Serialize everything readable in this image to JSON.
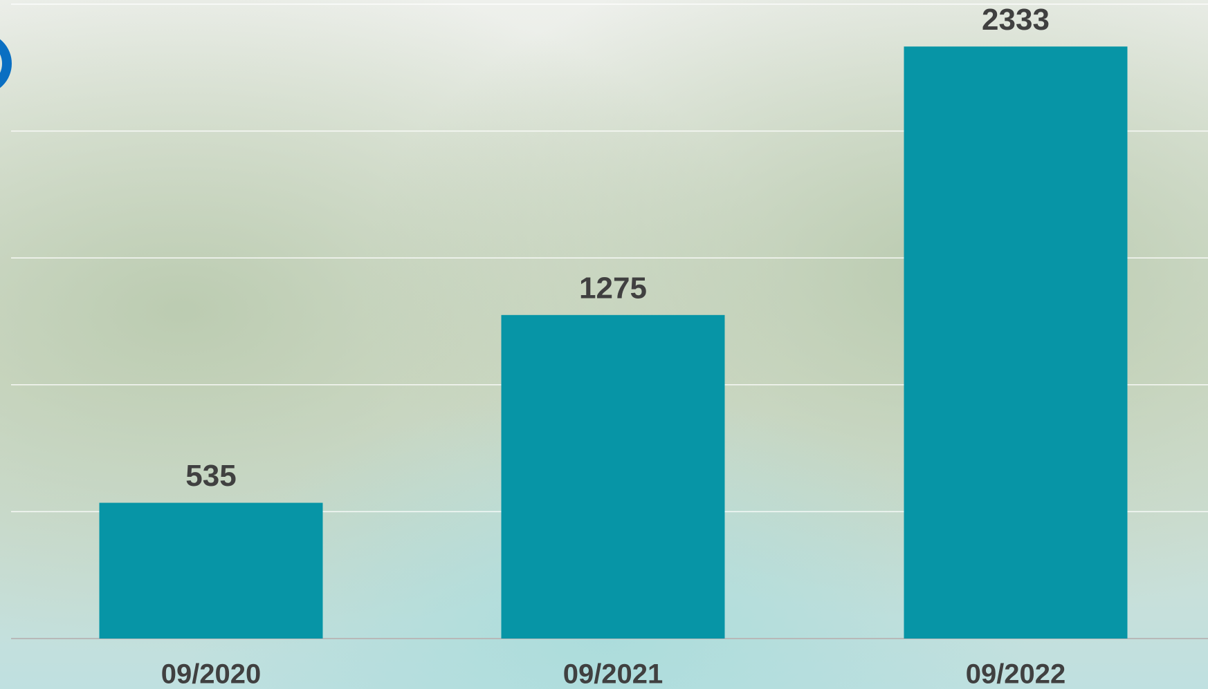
{
  "chart_data": {
    "type": "bar",
    "categories": [
      "09/2020",
      "09/2021",
      "09/2022"
    ],
    "values": [
      535,
      1275,
      2333
    ],
    "color": "#0795a6",
    "ylim": [
      0,
      2500
    ],
    "yticks": [
      0,
      500,
      1000,
      1500,
      2000,
      2500
    ],
    "grid": true
  }
}
